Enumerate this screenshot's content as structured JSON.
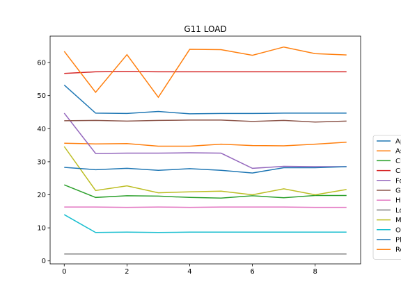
{
  "chart_data": {
    "type": "line",
    "title": "G11 LOAD",
    "xlabel": "",
    "ylabel": "",
    "xlim": [
      -0.45,
      9.45
    ],
    "ylim": [
      -0.9,
      68.0
    ],
    "x": [
      0,
      1,
      2,
      3,
      4,
      5,
      6,
      7,
      8,
      9
    ],
    "xticks": [
      0,
      2,
      4,
      6,
      8
    ],
    "yticks": [
      0,
      10,
      20,
      30,
      40,
      50,
      60
    ],
    "grid": false,
    "legend_position": "right",
    "series": [
      {
        "name": "Ap",
        "color": "#1f77b4",
        "values": [
          53.2,
          44.7,
          44.6,
          45.2,
          44.5,
          44.6,
          44.6,
          44.7,
          44.7,
          44.7
        ]
      },
      {
        "name": "As",
        "color": "#ff7f0e",
        "values": [
          35.6,
          35.4,
          35.5,
          34.7,
          34.7,
          35.3,
          34.9,
          34.8,
          35.3,
          35.9
        ]
      },
      {
        "name": "Cl",
        "color": "#2ca02c",
        "values": [
          23.0,
          19.2,
          19.7,
          19.6,
          19.2,
          19.0,
          19.7,
          19.1,
          19.8,
          19.8
        ]
      },
      {
        "name": "Cr",
        "color": "#d62728",
        "values": [
          56.7,
          57.2,
          57.3,
          57.2,
          57.2,
          57.2,
          57.2,
          57.2,
          57.2,
          57.2
        ]
      },
      {
        "name": "Fo",
        "color": "#9467bd",
        "values": [
          44.7,
          32.5,
          32.6,
          32.6,
          32.7,
          32.6,
          28.0,
          28.6,
          28.5,
          28.5
        ]
      },
      {
        "name": "G",
        "color": "#8c564b",
        "values": [
          42.4,
          42.5,
          42.3,
          42.5,
          42.6,
          42.6,
          42.2,
          42.5,
          42.0,
          42.3
        ]
      },
      {
        "name": "H",
        "color": "#e377c2",
        "values": [
          16.3,
          16.3,
          16.2,
          16.3,
          16.2,
          16.3,
          16.3,
          16.3,
          16.2,
          16.2
        ]
      },
      {
        "name": "Lo",
        "color": "#7f7f7f",
        "values": [
          2.1,
          2.1,
          2.1,
          2.1,
          2.1,
          2.1,
          2.1,
          2.1,
          2.1,
          2.1
        ]
      },
      {
        "name": "M",
        "color": "#bcbd22",
        "values": [
          34.6,
          21.3,
          22.7,
          20.6,
          20.9,
          21.1,
          20.0,
          21.8,
          20.0,
          21.6
        ]
      },
      {
        "name": "O",
        "color": "#17becf",
        "values": [
          14.0,
          8.6,
          8.7,
          8.6,
          8.7,
          8.7,
          8.7,
          8.7,
          8.7,
          8.7
        ]
      },
      {
        "name": "Pl",
        "color": "#1f77b4",
        "values": [
          28.3,
          27.6,
          28.0,
          27.4,
          27.9,
          27.4,
          26.6,
          28.2,
          28.2,
          28.5
        ]
      },
      {
        "name": "Ro",
        "color": "#ff7f0e",
        "values": [
          63.4,
          51.0,
          62.4,
          49.5,
          64.0,
          63.9,
          62.2,
          64.7,
          62.7,
          62.3
        ]
      }
    ]
  }
}
